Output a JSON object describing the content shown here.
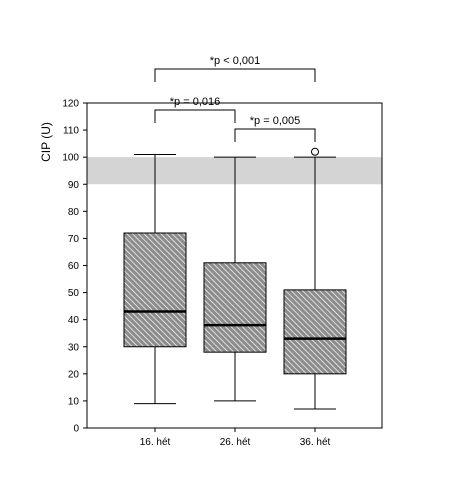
{
  "chart_data": {
    "type": "box",
    "title": "",
    "xlabel": "",
    "ylabel": "CIP (U)",
    "ylim": [
      0,
      120
    ],
    "yticks": [
      "0",
      "10",
      "20",
      "30",
      "40",
      "50",
      "60",
      "70",
      "80",
      "90",
      "100",
      "110",
      "120"
    ],
    "categories": [
      "16. hét",
      "26. hét",
      "36. hét"
    ],
    "reference_band": {
      "from": 90,
      "to": 100,
      "color": "#d4d4d4"
    },
    "fill_pattern": "diagonal-hatch",
    "colors": {
      "box_fill": "#8c8c8c",
      "hatch": "#ffffff",
      "median": "#000000",
      "band": "#d4d4d4"
    },
    "boxes": [
      {
        "category": "16. hét",
        "min": 9,
        "q1": 30,
        "median": 43,
        "q3": 72,
        "max": 101,
        "outliers": []
      },
      {
        "category": "26. hét",
        "min": 10,
        "q1": 28,
        "median": 38,
        "q3": 61,
        "max": 100,
        "outliers": []
      },
      {
        "category": "36. hét",
        "min": 7,
        "q1": 20,
        "median": 33,
        "q3": 51,
        "max": 100,
        "outliers": [
          102
        ]
      }
    ],
    "comparisons": [
      {
        "from": 0,
        "to": 2,
        "label": "*p < 0,001"
      },
      {
        "from": 0,
        "to": 1,
        "label": "*p = 0,016"
      },
      {
        "from": 1,
        "to": 2,
        "label": "*p = 0,005"
      }
    ]
  }
}
